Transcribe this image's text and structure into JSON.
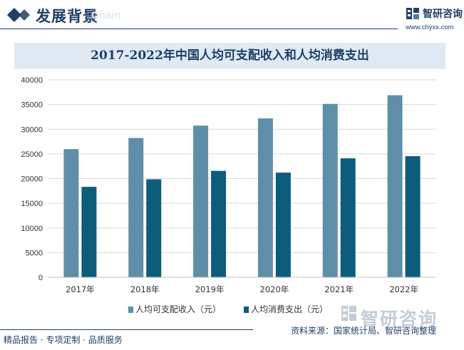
{
  "header": {
    "title": "发展背景",
    "watermark_text": "Chain",
    "brand_name": "智研咨询",
    "brand_url": "www.chyxx.com"
  },
  "colors": {
    "navy": "#1f3f66",
    "series_income": "#5f8fa8",
    "series_expense": "#0e5c7c",
    "title_band": "#dfeaf4",
    "gridline": "#d9d9d9"
  },
  "chart_data": {
    "type": "bar",
    "title": "2017-2022年中国人均可支配收入和人均消费支出",
    "xlabel": "",
    "ylabel": "",
    "categories": [
      "2017年",
      "2018年",
      "2019年",
      "2020年",
      "2021年",
      "2022年"
    ],
    "series": [
      {
        "name": "人均可支配收入（元）",
        "values": [
          25974,
          28228,
          30733,
          32189,
          35128,
          36883
        ]
      },
      {
        "name": "人均消费支出（元）",
        "values": [
          18322,
          19853,
          21559,
          21210,
          24100,
          24538
        ]
      }
    ],
    "ylim": [
      0,
      40000
    ],
    "yticks": [
      0,
      5000,
      10000,
      15000,
      20000,
      25000,
      30000,
      35000,
      40000
    ],
    "grid": true,
    "legend_position": "bottom"
  },
  "watermark": {
    "brand_text": "智研咨询"
  },
  "footer": {
    "left": "精品报告 · 专项定制 · 品质服务",
    "right": "资料来源：国家统计局、智研咨询整理"
  }
}
